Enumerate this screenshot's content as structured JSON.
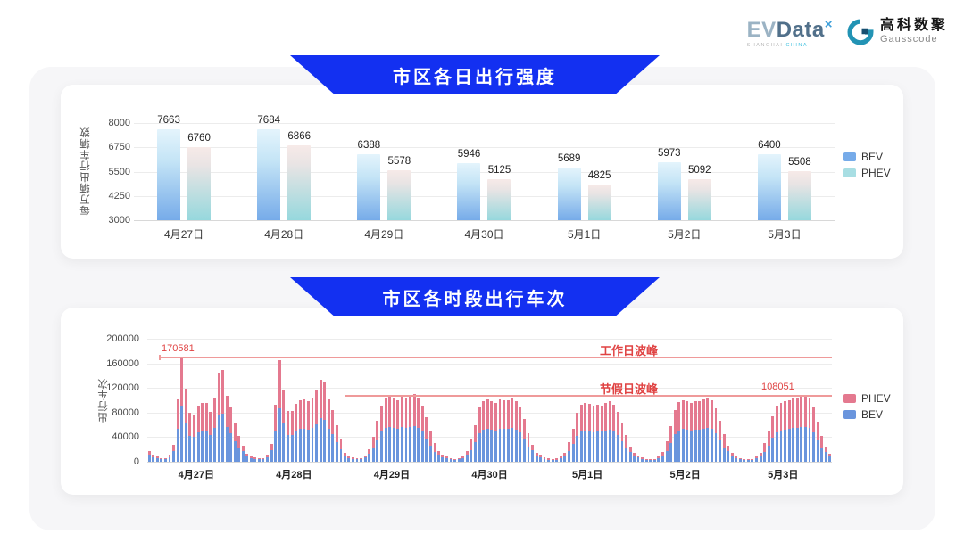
{
  "header": {
    "evdata": {
      "ev": "EV",
      "data": "Data",
      "x": "×",
      "sub_left": "SHANGHAI",
      "sub_right": "CHINA"
    },
    "gausscode": {
      "cn": "高科数聚",
      "en": "Gausscode"
    }
  },
  "colors": {
    "banner_blue": "#1330f1",
    "bev_blue": "#6a95dd",
    "phev_pink": "#e4798f",
    "bev_gradient_top": "#e4f4fc",
    "bev_gradient_bottom": "#76abe9",
    "phev_gradient_top": "#f7eae8",
    "phev_gradient_bottom": "#96d8dd",
    "annotation_red": "#e04343",
    "peak_line_red": "#ef9a9a"
  },
  "chart_data": [
    {
      "type": "bar",
      "title": "市区各日出行强度",
      "ylabel": "每万辆出行车辆数",
      "ylim": [
        3000,
        8000
      ],
      "yticks": [
        8000,
        6750,
        5500,
        4250,
        3000
      ],
      "grid": true,
      "legend_position": "right",
      "categories": [
        "4月27日",
        "4月28日",
        "4月29日",
        "4月30日",
        "5月1日",
        "5月2日",
        "5月3日"
      ],
      "series": [
        {
          "name": "BEV",
          "values": [
            7663,
            7684,
            6388,
            5946,
            5689,
            5973,
            6400
          ]
        },
        {
          "name": "PHEV",
          "values": [
            6760,
            6866,
            5578,
            5125,
            4825,
            5092,
            5508
          ]
        }
      ],
      "legend": [
        "BEV",
        "PHEV"
      ]
    },
    {
      "type": "stacked-bar",
      "title": "市区各时段出行车次",
      "ylabel": "出行车次",
      "ylim": [
        0,
        200000
      ],
      "yticks": [
        0,
        40000,
        80000,
        120000,
        160000,
        200000
      ],
      "grid": true,
      "legend_position": "right",
      "categories": [
        "4月27日",
        "4月28日",
        "4月29日",
        "4月30日",
        "5月1日",
        "5月2日",
        "5月3日"
      ],
      "hours_per_day": 24,
      "stack_order_bottom_to_top": [
        "BEV",
        "PHEV"
      ],
      "bev_share": 0.53,
      "bev_share_low": 0.66,
      "low_threshold": 30000,
      "totals_by_day": [
        [
          18000,
          12000,
          8500,
          6500,
          6000,
          11000,
          27000,
          101000,
          170581,
          119000,
          80000,
          76000,
          91000,
          95000,
          96000,
          81000,
          104000,
          145000,
          149000,
          108000,
          88000,
          64000,
          42000,
          26000
        ],
        [
          13000,
          9000,
          7000,
          6000,
          6500,
          12000,
          29000,
          93000,
          165000,
          117000,
          83000,
          82000,
          94000,
          100000,
          101000,
          99000,
          103000,
          116000,
          134000,
          129000,
          102000,
          84000,
          60000,
          38000
        ],
        [
          14000,
          9000,
          7000,
          6000,
          6500,
          10000,
          20000,
          40000,
          66000,
          92000,
          103000,
          107000,
          104000,
          100000,
          106000,
          105000,
          107000,
          110000,
          104000,
          92000,
          72000,
          50000,
          30000,
          17000
        ],
        [
          12000,
          8000,
          6000,
          5000,
          6000,
          9000,
          17000,
          36000,
          60000,
          88000,
          99000,
          101000,
          98000,
          96000,
          101000,
          100000,
          100000,
          104000,
          99000,
          89000,
          70000,
          47000,
          28000,
          15000
        ],
        [
          11000,
          7000,
          5500,
          5000,
          5500,
          8000,
          15000,
          32000,
          54000,
          80000,
          93000,
          96000,
          94000,
          91000,
          93000,
          92000,
          96000,
          98000,
          93000,
          81000,
          63000,
          43000,
          25000,
          14000
        ],
        [
          10000,
          7000,
          5000,
          4500,
          5000,
          8000,
          16000,
          34000,
          58000,
          84000,
          97000,
          100000,
          98000,
          95000,
          98000,
          99000,
          101000,
          105000,
          100000,
          87000,
          67000,
          45000,
          26000,
          14000
        ],
        [
          9000,
          6000,
          5000,
          4500,
          5000,
          8000,
          15000,
          30000,
          50000,
          74000,
          90000,
          96000,
          98000,
          100000,
          103000,
          105000,
          107000,
          108051,
          103000,
          89000,
          65000,
          42000,
          24000,
          13000
        ]
      ],
      "annotations": {
        "workday_peak": {
          "label": "工作日波峰",
          "value": 170581,
          "value_label": "170581"
        },
        "holiday_peak": {
          "label": "节假日波峰",
          "value": 108051,
          "value_label": "108051"
        }
      },
      "legend": [
        "PHEV",
        "BEV"
      ]
    }
  ]
}
